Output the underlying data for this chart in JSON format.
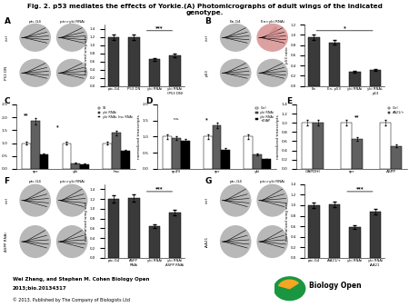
{
  "title_line1": "Fig. 2. p53 mediates the effects of Yorkie.(A) Photomicrographs of adult wings of the indicated",
  "title_line2": "genotype.",
  "footer_author": "Wei Zhang, and Stephen M. Cohen Biology Open",
  "footer_journal": "2013;bio.20134317",
  "footer_copyright": "© 2013. Published by The Company of Biologists Ltd",
  "panel_A_bar_labels": [
    "ptc-G4",
    "P53 DN",
    "yki RNAi",
    "yki RNAi\n(P53 DN)"
  ],
  "panel_A_bar_values": [
    1.2,
    1.2,
    0.65,
    0.75
  ],
  "panel_A_ylabel": "normalized wing size",
  "panel_A_sig": "***",
  "panel_B_bar_labels": [
    "En",
    "En, p53",
    "yki RNAi",
    "yki RNAi,\np53"
  ],
  "panel_B_bar_values": [
    0.95,
    0.85,
    0.28,
    0.32
  ],
  "panel_B_ylabel": "p53 ratio",
  "panel_B_sig": "*",
  "panel_C_categories": [
    "rpr",
    "yki",
    "hsc"
  ],
  "panel_C_s2": [
    1.0,
    1.0,
    1.0
  ],
  "panel_C_yki_rnai": [
    1.85,
    0.22,
    1.4
  ],
  "panel_C_yki_hsc": [
    0.55,
    0.18,
    0.7
  ],
  "panel_C_ylabel": "normalized transcripts",
  "panel_D_categories": [
    "rp49",
    "rpr",
    "yki"
  ],
  "panel_D_ctrl": [
    1.0,
    1.0,
    1.0
  ],
  "panel_D_yki_rnai": [
    0.95,
    1.35,
    0.45
  ],
  "panel_D_yki_diap": [
    0.88,
    0.6,
    0.3
  ],
  "panel_D_ylabel": "normalized transcripts",
  "panel_E_categories": [
    "GAPDHl",
    "rpr",
    "ASPP"
  ],
  "panel_E_ctrl": [
    1.0,
    1.0,
    1.0
  ],
  "panel_E_aa21": [
    1.0,
    0.65,
    0.5
  ],
  "panel_E_ylabel": "normalized transcripts",
  "panel_F_bar_labels": [
    "ptc-G4",
    "ASPP\nRNAi",
    "yki RNAi",
    "yki RNAi\nASPP RNAi"
  ],
  "panel_F_bar_values": [
    1.2,
    1.22,
    0.65,
    0.92
  ],
  "panel_F_ylabel": "normalized wing size",
  "panel_F_sig": "***",
  "panel_G_bar_labels": [
    "ptc-G4",
    "AiA21/+",
    "yki RNAi",
    "yki RNAi\niAA21"
  ],
  "panel_G_bar_values": [
    1.0,
    1.02,
    0.58,
    0.88
  ],
  "panel_G_ylabel": "normalized wing size",
  "panel_G_sig": "***",
  "bar_color_dark": "#3a3a3a",
  "background_color": "#ffffff"
}
